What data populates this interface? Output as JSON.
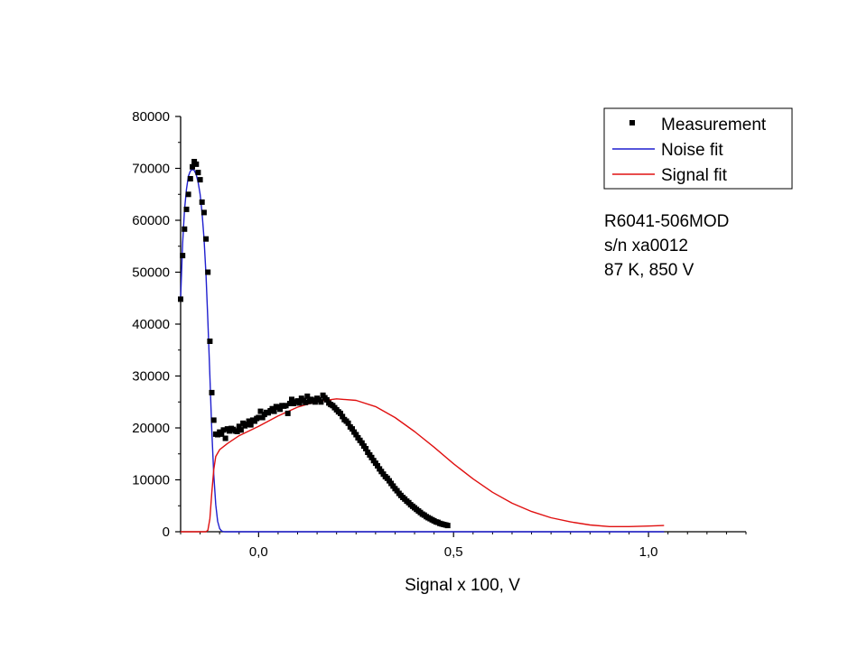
{
  "chart_data": {
    "type": "scatter",
    "title": "",
    "xlabel": "Signal x 100, V",
    "ylabel": "",
    "xlim": [
      -0.2,
      1.25
    ],
    "ylim": [
      0,
      80000
    ],
    "x_ticks": [
      0.0,
      0.5,
      1.0
    ],
    "x_tick_labels": [
      "0,0",
      "0,5",
      "1,0"
    ],
    "y_ticks": [
      0,
      10000,
      20000,
      30000,
      40000,
      50000,
      60000,
      70000,
      80000
    ],
    "y_tick_labels": [
      "0",
      "10000",
      "20000",
      "30000",
      "40000",
      "50000",
      "60000",
      "70000",
      "80000"
    ],
    "grid": false,
    "legend_position": "top-right",
    "colors": {
      "measurement": "#000000",
      "noise_fit": "#1f1fcf",
      "signal_fit": "#e01010"
    },
    "annotations": [
      "R6041-506MOD",
      "s/n xa0012",
      "87 K, 850 V"
    ],
    "series": [
      {
        "name": "Measurement",
        "style": "markers",
        "points": [
          [
            -0.2,
            44800
          ],
          [
            -0.195,
            53200
          ],
          [
            -0.19,
            58300
          ],
          [
            -0.185,
            62100
          ],
          [
            -0.18,
            65000
          ],
          [
            -0.175,
            68000
          ],
          [
            -0.17,
            70300
          ],
          [
            -0.165,
            71300
          ],
          [
            -0.16,
            70800
          ],
          [
            -0.155,
            69200
          ],
          [
            -0.15,
            67800
          ],
          [
            -0.145,
            63500
          ],
          [
            -0.14,
            61500
          ],
          [
            -0.135,
            56400
          ],
          [
            -0.13,
            50000
          ],
          [
            -0.125,
            36700
          ],
          [
            -0.12,
            26800
          ],
          [
            -0.115,
            21500
          ],
          [
            -0.11,
            18800
          ],
          [
            -0.105,
            18700
          ],
          [
            -0.1,
            19200
          ],
          [
            -0.095,
            18800
          ],
          [
            -0.09,
            19600
          ],
          [
            -0.085,
            18000
          ],
          [
            -0.08,
            19800
          ],
          [
            -0.075,
            19400
          ],
          [
            -0.07,
            19900
          ],
          [
            -0.065,
            19700
          ],
          [
            -0.06,
            19400
          ],
          [
            -0.055,
            19300
          ],
          [
            -0.05,
            20300
          ],
          [
            -0.045,
            19600
          ],
          [
            -0.04,
            20900
          ],
          [
            -0.035,
            20400
          ],
          [
            -0.03,
            20700
          ],
          [
            -0.025,
            21300
          ],
          [
            -0.02,
            20600
          ],
          [
            -0.015,
            21500
          ],
          [
            -0.01,
            21300
          ],
          [
            -0.005,
            21800
          ],
          [
            0.0,
            22000
          ],
          [
            0.005,
            23200
          ],
          [
            0.01,
            22000
          ],
          [
            0.015,
            22600
          ],
          [
            0.02,
            23000
          ],
          [
            0.025,
            22900
          ],
          [
            0.03,
            23300
          ],
          [
            0.035,
            23700
          ],
          [
            0.04,
            23200
          ],
          [
            0.045,
            24100
          ],
          [
            0.05,
            24000
          ],
          [
            0.055,
            23600
          ],
          [
            0.06,
            24300
          ],
          [
            0.065,
            24200
          ],
          [
            0.07,
            24300
          ],
          [
            0.075,
            22800
          ],
          [
            0.08,
            24700
          ],
          [
            0.085,
            25500
          ],
          [
            0.09,
            24700
          ],
          [
            0.095,
            25000
          ],
          [
            0.1,
            25200
          ],
          [
            0.105,
            24800
          ],
          [
            0.11,
            25700
          ],
          [
            0.115,
            25300
          ],
          [
            0.12,
            24900
          ],
          [
            0.125,
            26100
          ],
          [
            0.13,
            25100
          ],
          [
            0.135,
            25500
          ],
          [
            0.14,
            25300
          ],
          [
            0.145,
            25000
          ],
          [
            0.15,
            25700
          ],
          [
            0.155,
            25400
          ],
          [
            0.16,
            25000
          ],
          [
            0.165,
            26300
          ],
          [
            0.17,
            25800
          ],
          [
            0.175,
            25400
          ],
          [
            0.18,
            24800
          ],
          [
            0.185,
            24500
          ],
          [
            0.19,
            24300
          ],
          [
            0.195,
            23900
          ],
          [
            0.2,
            23500
          ],
          [
            0.205,
            23100
          ],
          [
            0.21,
            22800
          ],
          [
            0.215,
            22200
          ],
          [
            0.22,
            21600
          ],
          [
            0.225,
            21300
          ],
          [
            0.23,
            20900
          ],
          [
            0.235,
            20200
          ],
          [
            0.24,
            19800
          ],
          [
            0.245,
            19200
          ],
          [
            0.25,
            18700
          ],
          [
            0.255,
            18100
          ],
          [
            0.26,
            17600
          ],
          [
            0.265,
            17100
          ],
          [
            0.27,
            16500
          ],
          [
            0.275,
            16000
          ],
          [
            0.28,
            15300
          ],
          [
            0.285,
            14800
          ],
          [
            0.29,
            14300
          ],
          [
            0.295,
            13700
          ],
          [
            0.3,
            13200
          ],
          [
            0.305,
            12700
          ],
          [
            0.31,
            12100
          ],
          [
            0.315,
            11600
          ],
          [
            0.32,
            11100
          ],
          [
            0.325,
            10600
          ],
          [
            0.33,
            10300
          ],
          [
            0.335,
            9800
          ],
          [
            0.34,
            9300
          ],
          [
            0.345,
            8800
          ],
          [
            0.35,
            8300
          ],
          [
            0.355,
            7900
          ],
          [
            0.36,
            7400
          ],
          [
            0.365,
            7000
          ],
          [
            0.37,
            6600
          ],
          [
            0.375,
            6300
          ],
          [
            0.38,
            5900
          ],
          [
            0.385,
            5600
          ],
          [
            0.39,
            5200
          ],
          [
            0.395,
            4900
          ],
          [
            0.4,
            4600
          ],
          [
            0.405,
            4300
          ],
          [
            0.41,
            4000
          ],
          [
            0.415,
            3700
          ],
          [
            0.42,
            3400
          ],
          [
            0.425,
            3200
          ],
          [
            0.43,
            2900
          ],
          [
            0.435,
            2700
          ],
          [
            0.44,
            2500
          ],
          [
            0.445,
            2300
          ],
          [
            0.45,
            2100
          ],
          [
            0.455,
            1900
          ],
          [
            0.46,
            1800
          ],
          [
            0.465,
            1600
          ],
          [
            0.47,
            1500
          ],
          [
            0.475,
            1400
          ],
          [
            0.48,
            1300
          ],
          [
            0.485,
            1200
          ]
        ]
      },
      {
        "name": "Noise fit",
        "style": "line",
        "points": [
          [
            -0.2,
            45000
          ],
          [
            -0.195,
            55500
          ],
          [
            -0.19,
            62000
          ],
          [
            -0.185,
            66000
          ],
          [
            -0.18,
            68500
          ],
          [
            -0.175,
            69500
          ],
          [
            -0.17,
            69800
          ],
          [
            -0.165,
            69600
          ],
          [
            -0.16,
            68800
          ],
          [
            -0.155,
            67300
          ],
          [
            -0.15,
            65000
          ],
          [
            -0.145,
            61500
          ],
          [
            -0.14,
            56500
          ],
          [
            -0.135,
            49500
          ],
          [
            -0.13,
            40500
          ],
          [
            -0.125,
            30000
          ],
          [
            -0.12,
            19500
          ],
          [
            -0.115,
            11000
          ],
          [
            -0.11,
            5200
          ],
          [
            -0.105,
            2000
          ],
          [
            -0.1,
            600
          ],
          [
            -0.095,
            150
          ],
          [
            -0.09,
            20
          ],
          [
            -0.085,
            0
          ],
          [
            1.04,
            0
          ]
        ]
      },
      {
        "name": "Signal fit",
        "style": "line",
        "points": [
          [
            -0.2,
            0
          ],
          [
            -0.135,
            0
          ],
          [
            -0.13,
            300
          ],
          [
            -0.125,
            2500
          ],
          [
            -0.12,
            7500
          ],
          [
            -0.115,
            12000
          ],
          [
            -0.11,
            14500
          ],
          [
            -0.1,
            15800
          ],
          [
            -0.08,
            17000
          ],
          [
            -0.05,
            18500
          ],
          [
            0.0,
            20300
          ],
          [
            0.05,
            22300
          ],
          [
            0.1,
            24000
          ],
          [
            0.15,
            25100
          ],
          [
            0.2,
            25600
          ],
          [
            0.25,
            25300
          ],
          [
            0.3,
            24100
          ],
          [
            0.35,
            22000
          ],
          [
            0.4,
            19300
          ],
          [
            0.45,
            16300
          ],
          [
            0.5,
            13100
          ],
          [
            0.55,
            10200
          ],
          [
            0.6,
            7600
          ],
          [
            0.65,
            5500
          ],
          [
            0.7,
            3900
          ],
          [
            0.75,
            2700
          ],
          [
            0.8,
            1900
          ],
          [
            0.85,
            1300
          ],
          [
            0.9,
            1000
          ],
          [
            0.95,
            1000
          ],
          [
            1.0,
            1100
          ],
          [
            1.04,
            1200
          ]
        ]
      }
    ]
  }
}
